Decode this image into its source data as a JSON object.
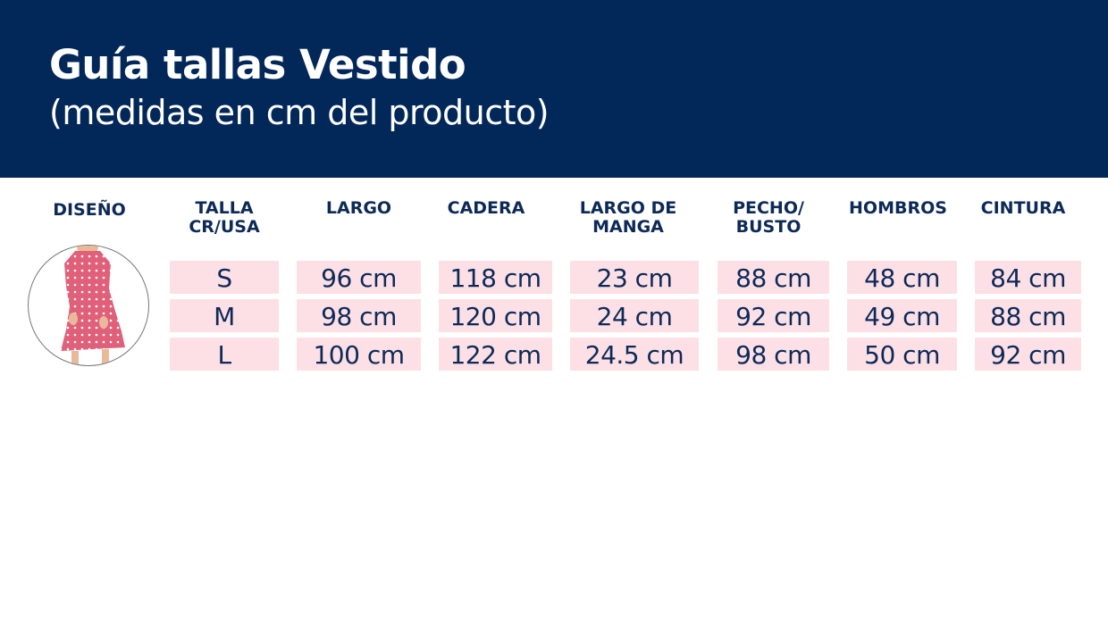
{
  "header": {
    "title": "Guía tallas Vestido",
    "subtitle": "(medidas en cm del producto)"
  },
  "columns": [
    {
      "label": "DISEÑO"
    },
    {
      "label": "TALLA CR/USA",
      "values": [
        "S",
        "M",
        "L"
      ]
    },
    {
      "label": "LARGO",
      "values": [
        "96 cm",
        "98 cm",
        "100 cm"
      ]
    },
    {
      "label": "CADERA",
      "values": [
        "118 cm",
        "120 cm",
        "122 cm"
      ]
    },
    {
      "label": "LARGO DE MANGA",
      "values": [
        "23 cm",
        "24 cm",
        "24.5 cm"
      ]
    },
    {
      "label": "PECHO/ BUSTO",
      "values": [
        "88 cm",
        "92 cm",
        "98 cm"
      ]
    },
    {
      "label": "HOMBROS",
      "values": [
        "48 cm",
        "49 cm",
        "50 cm"
      ]
    },
    {
      "label": "CINTURA",
      "values": [
        "84 cm",
        "88 cm",
        "92 cm"
      ]
    }
  ],
  "colors": {
    "navy": "#022859",
    "cell": "#fde0e6",
    "dress": "#e0607a"
  }
}
